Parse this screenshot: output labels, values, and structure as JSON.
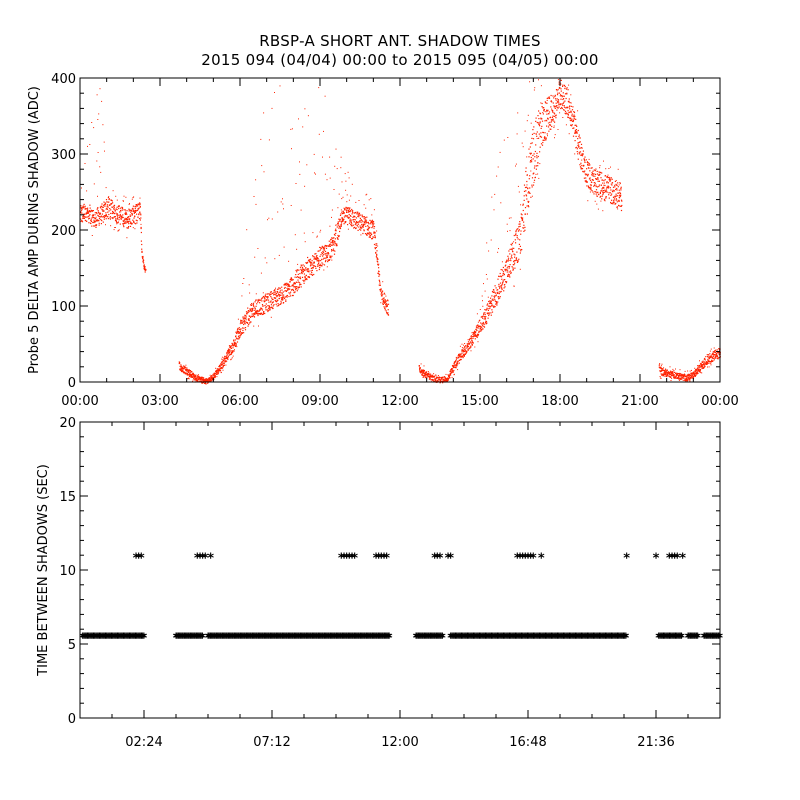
{
  "title": "RBSP-A SHORT ANT. SHADOW TIMES",
  "subtitle": "2015 094 (04/04) 00:00 to 2015 095 (04/05) 00:00",
  "colors": {
    "points_top": "#ff2200",
    "points_bottom": "#000000"
  },
  "chart_data": [
    {
      "type": "scatter",
      "ylabel": "Probe 5 DELTA AMP DURING SHADOW (ADC)",
      "xlabel": "",
      "xlim": [
        0,
        24
      ],
      "ylim": [
        0,
        400
      ],
      "xtick_labels": [
        "00:00",
        "03:00",
        "06:00",
        "09:00",
        "12:00",
        "15:00",
        "18:00",
        "21:00",
        "00:00"
      ],
      "ytick_labels": [
        "0",
        "100",
        "200",
        "300",
        "400"
      ],
      "series": [
        {
          "x": [
            0.0,
            0.25,
            0.5,
            0.75,
            1.0,
            1.25,
            1.5,
            1.75,
            2.0,
            2.25,
            2.3,
            2.4,
            3.75,
            4.0,
            4.25,
            4.5,
            4.75,
            5.0,
            5.25,
            5.5,
            5.75,
            6.0,
            6.25,
            6.5,
            6.75,
            7.0,
            7.25,
            7.5,
            7.75,
            8.0,
            8.25,
            8.5,
            8.75,
            9.0,
            9.25,
            9.5,
            9.75,
            10.0,
            10.25,
            10.5,
            10.75,
            11.0,
            11.25,
            11.5,
            12.75,
            13.0,
            13.25,
            13.5,
            13.75,
            14.0,
            14.25,
            14.5,
            14.75,
            15.0,
            15.25,
            15.5,
            15.75,
            16.0,
            16.25,
            16.5,
            16.75,
            17.0,
            17.25,
            17.5,
            17.75,
            18.0,
            18.25,
            18.5,
            18.75,
            19.0,
            19.25,
            19.5,
            19.75,
            20.0,
            20.25,
            21.75,
            22.0,
            22.25,
            22.5,
            22.75,
            23.0,
            23.25,
            23.5,
            23.75,
            24.0
          ],
          "y": [
            220,
            225,
            215,
            220,
            230,
            225,
            220,
            215,
            220,
            225,
            170,
            150,
            20,
            15,
            8,
            3,
            2,
            8,
            20,
            35,
            50,
            70,
            85,
            95,
            100,
            105,
            110,
            115,
            120,
            130,
            140,
            150,
            155,
            165,
            170,
            180,
            210,
            220,
            215,
            210,
            205,
            200,
            120,
            100,
            15,
            10,
            5,
            3,
            5,
            20,
            35,
            45,
            60,
            75,
            90,
            110,
            130,
            150,
            170,
            190,
            260,
            300,
            330,
            350,
            360,
            380,
            370,
            340,
            300,
            275,
            265,
            260,
            255,
            250,
            245,
            15,
            12,
            10,
            8,
            6,
            10,
            20,
            30,
            35,
            40
          ],
          "band_low": [
            195,
            200,
            190,
            195,
            200,
            200,
            195,
            190,
            195,
            200,
            165,
            145,
            10,
            5,
            0,
            0,
            0,
            2,
            10,
            22,
            35,
            50,
            60,
            70,
            75,
            80,
            85,
            90,
            95,
            100,
            110,
            120,
            130,
            135,
            145,
            150,
            185,
            195,
            190,
            185,
            180,
            175,
            100,
            80,
            5,
            2,
            0,
            0,
            0,
            8,
            22,
            32,
            45,
            55,
            65,
            80,
            95,
            110,
            125,
            140,
            180,
            220,
            260,
            300,
            320,
            340,
            330,
            300,
            260,
            240,
            230,
            225,
            220,
            215,
            210,
            5,
            3,
            2,
            0,
            0,
            3,
            10,
            18,
            22,
            28
          ],
          "band_high": [
            250,
            400,
            405,
            400,
            270,
            255,
            250,
            245,
            250,
            255,
            175,
            155,
            30,
            25,
            15,
            8,
            6,
            15,
            30,
            45,
            65,
            95,
            250,
            320,
            350,
            380,
            390,
            395,
            360,
            370,
            380,
            390,
            395,
            400,
            380,
            320,
            300,
            280,
            270,
            260,
            250,
            245,
            140,
            120,
            25,
            20,
            12,
            8,
            12,
            32,
            50,
            60,
            80,
            100,
            200,
            300,
            340,
            350,
            380,
            400,
            400,
            405,
            405,
            405,
            405,
            405,
            400,
            380,
            340,
            310,
            300,
            295,
            290,
            285,
            280,
            25,
            22,
            20,
            18,
            15,
            20,
            32,
            45,
            50,
            55
          ]
        }
      ]
    },
    {
      "type": "scatter",
      "ylabel": "TIME BETWEEN SHADOWS (SEC)",
      "xlabel": "",
      "xlim": [
        0,
        24
      ],
      "ylim": [
        0,
        20
      ],
      "xtick_labels": [
        "02:24",
        "07:12",
        "12:00",
        "16:48",
        "21:36"
      ],
      "ytick_labels": [
        "0",
        "5",
        "10",
        "15",
        "20"
      ],
      "series": [
        {
          "low_segments": [
            [
              0.1,
              2.4
            ],
            [
              3.6,
              4.6
            ],
            [
              4.8,
              11.6
            ],
            [
              12.6,
              13.6
            ],
            [
              13.9,
              20.5
            ],
            [
              21.7,
              22.6
            ],
            [
              22.8,
              23.2
            ],
            [
              23.4,
              24.0
            ]
          ],
          "low_value": 5.5,
          "high_x": [
            2.1,
            2.2,
            2.3,
            4.4,
            4.5,
            4.6,
            4.7,
            4.9,
            9.8,
            9.9,
            10.0,
            10.1,
            10.2,
            10.3,
            11.1,
            11.2,
            11.3,
            11.4,
            11.5,
            13.3,
            13.4,
            13.5,
            13.8,
            13.9,
            16.4,
            16.5,
            16.6,
            16.7,
            16.8,
            16.9,
            17.0,
            17.3,
            20.5,
            21.6,
            22.1,
            22.2,
            22.3,
            22.4,
            22.6
          ],
          "high_value": 10.9
        }
      ]
    }
  ]
}
